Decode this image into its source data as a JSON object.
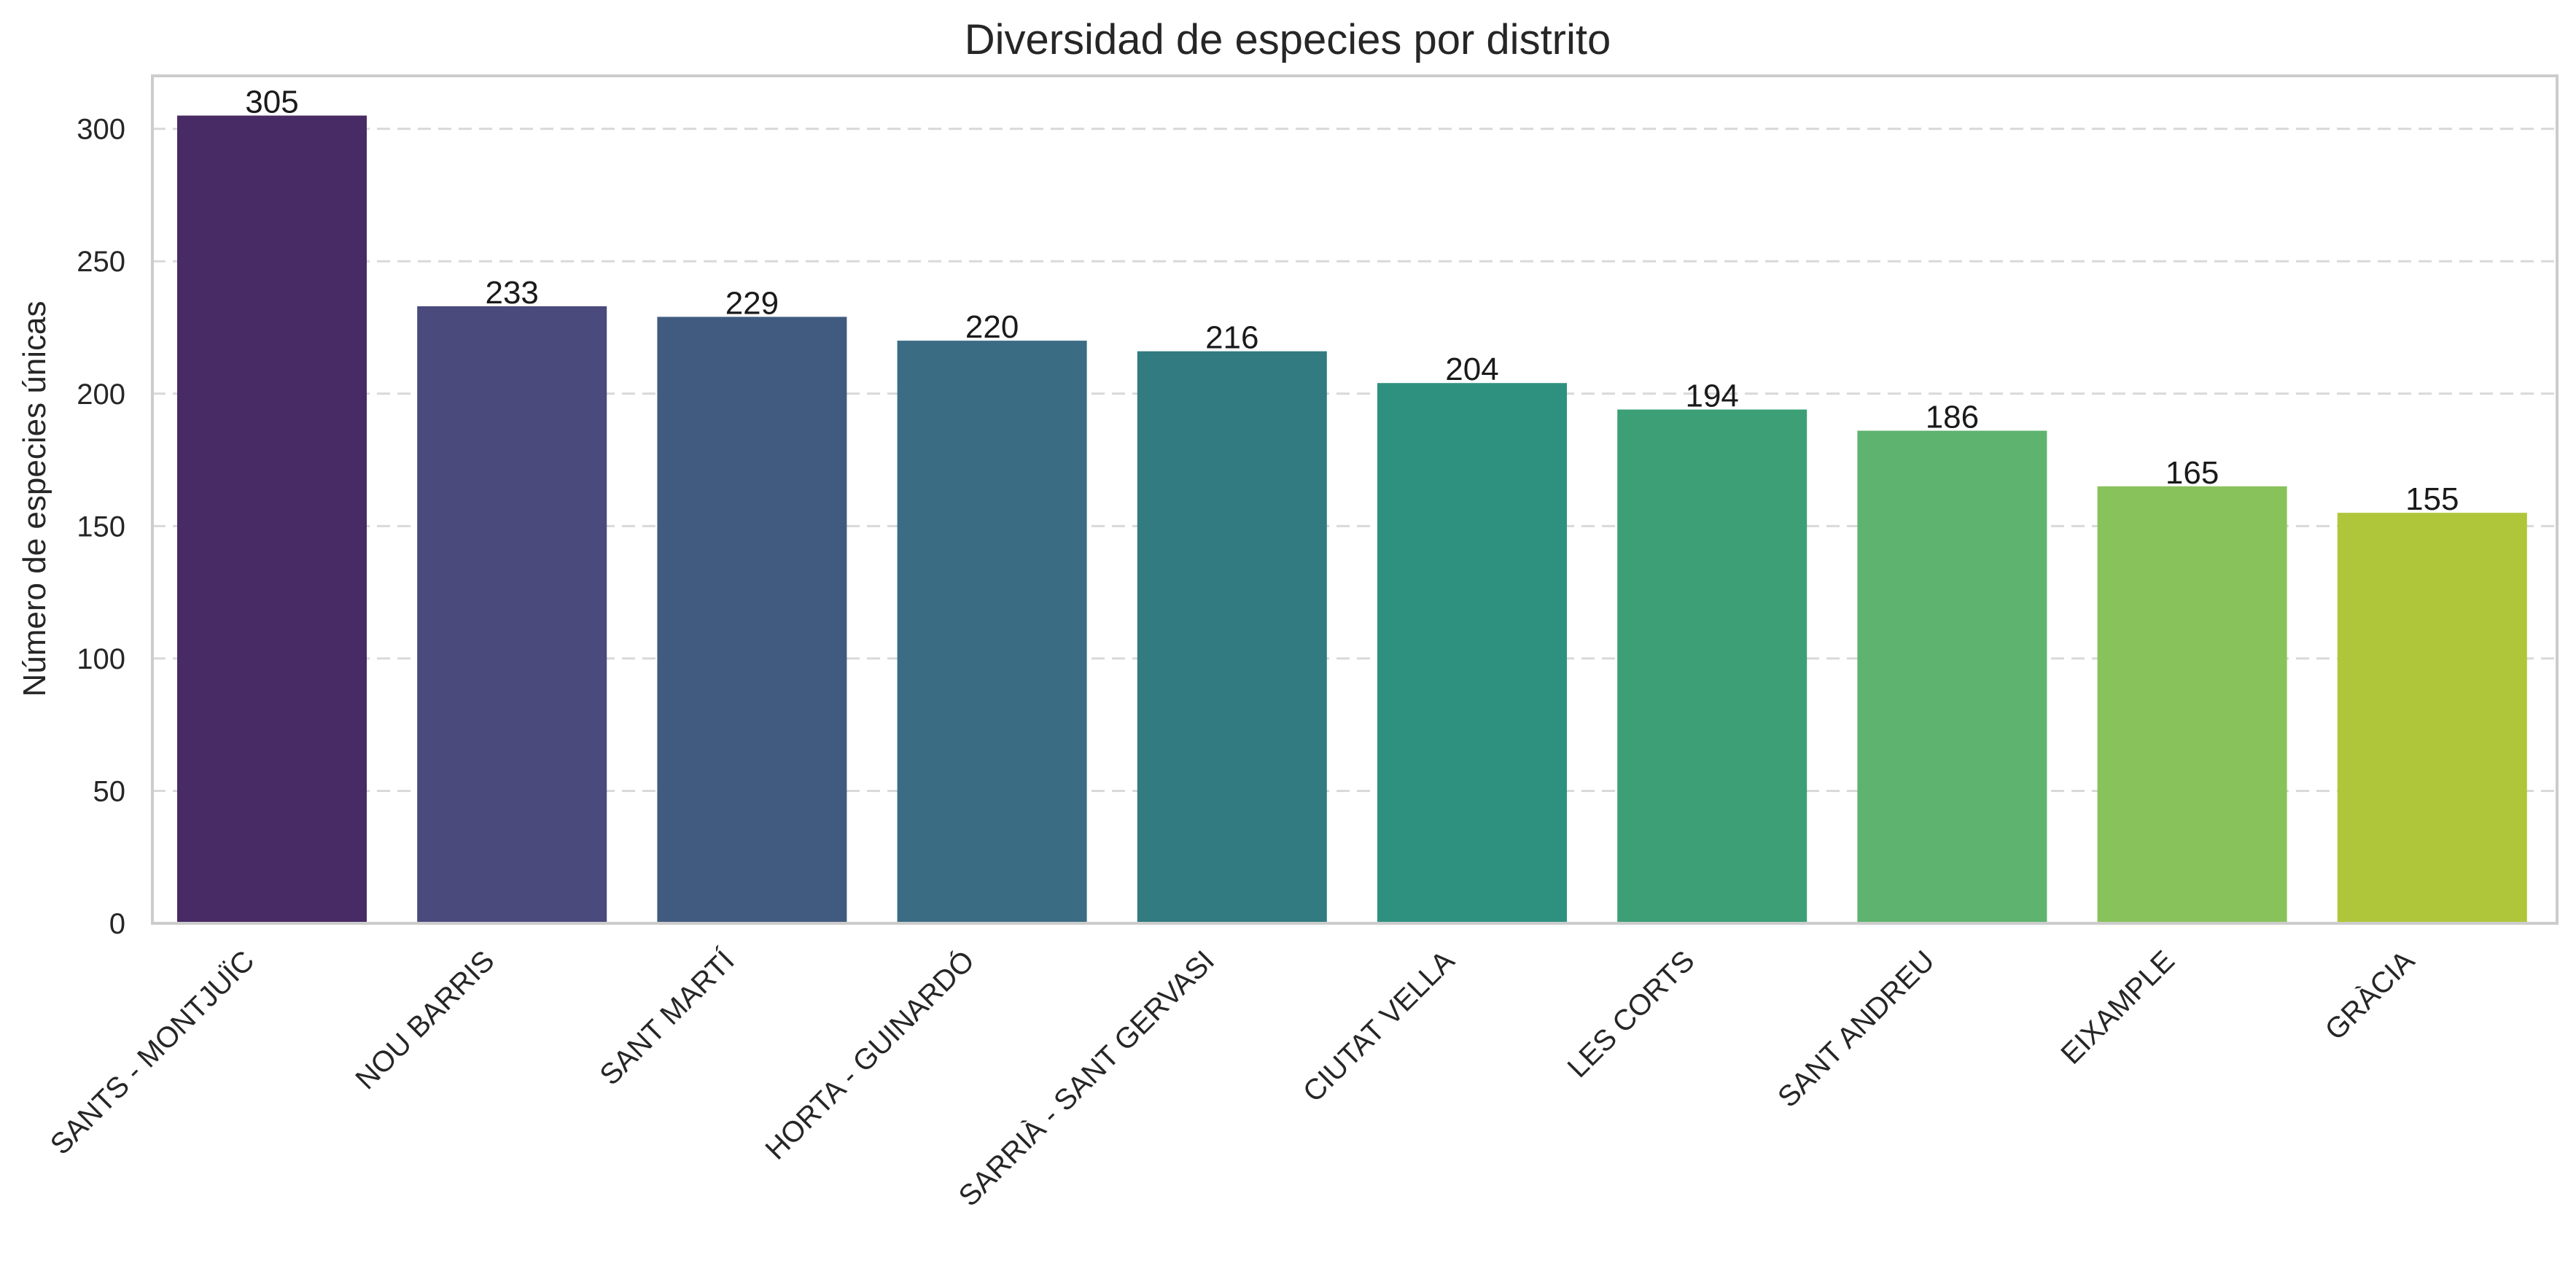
{
  "chart_data": {
    "type": "bar",
    "title": "Diversidad de especies por distrito",
    "xlabel": "",
    "ylabel": "Número de especies únicas",
    "ylim": [
      0,
      320
    ],
    "yticks": [
      0,
      50,
      100,
      150,
      200,
      250,
      300
    ],
    "grid": "horizontal dashed",
    "categories": [
      "SANTS - MONTJUÏC",
      "NOU BARRIS",
      "SANT MARTÍ",
      "HORTA - GUINARDÓ",
      "SARRIÀ - SANT GERVASI",
      "CIUTAT VELLA",
      "LES CORTS",
      "SANT ANDREU",
      "EIXAMPLE",
      "GRÀCIA"
    ],
    "values": [
      305,
      233,
      229,
      220,
      216,
      204,
      194,
      186,
      165,
      155
    ],
    "colors": [
      "#482a64",
      "#4a4a7d",
      "#415b80",
      "#3a6c84",
      "#327b80",
      "#2e917f",
      "#3c9f76",
      "#5eb36e",
      "#88c25a",
      "#b0c63a"
    ]
  }
}
